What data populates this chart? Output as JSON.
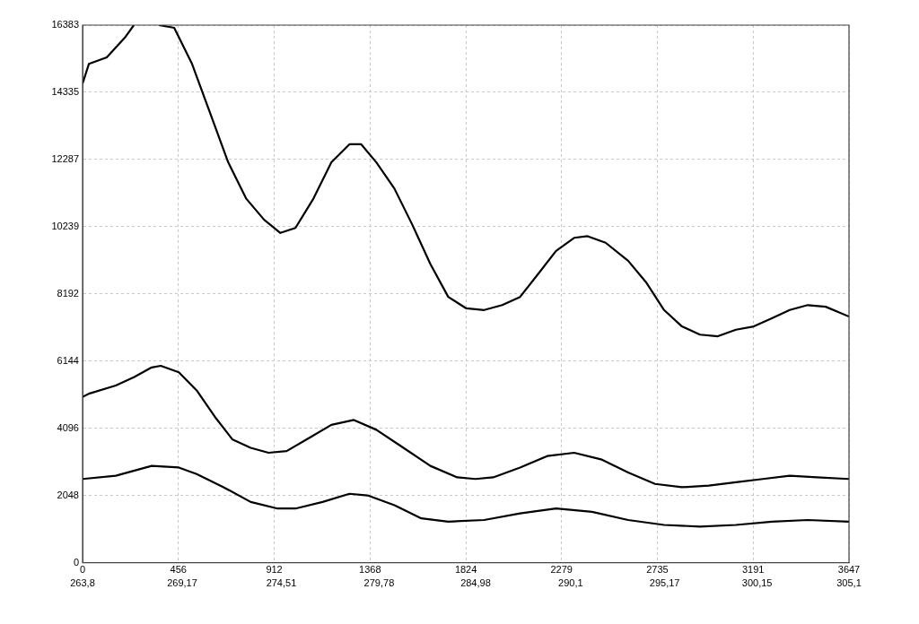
{
  "chart_data": {
    "type": "line",
    "xlim": [
      0,
      3647
    ],
    "xticks": [
      0,
      456,
      912,
      1368,
      1824,
      2279,
      2735,
      3191,
      3647
    ],
    "x2lim": [
      263.8,
      305.1
    ],
    "x2ticks": [
      {
        "value": 263.8,
        "label": "263,8"
      },
      {
        "value": 269.17,
        "label": "269,17"
      },
      {
        "value": 274.51,
        "label": "274,51"
      },
      {
        "value": 279.78,
        "label": "279,78"
      },
      {
        "value": 284.98,
        "label": "284,98"
      },
      {
        "value": 290.1,
        "label": "290,1"
      },
      {
        "value": 295.17,
        "label": "295,17"
      },
      {
        "value": 300.15,
        "label": "300,15"
      },
      {
        "value": 305.1,
        "label": "305,1"
      }
    ],
    "ylim": [
      0,
      16383
    ],
    "yticks": [
      0,
      2048,
      4096,
      6144,
      8192,
      10239,
      12287,
      14335,
      16383
    ],
    "grid": true,
    "legend": false,
    "marker": "none",
    "line_style": "solid",
    "series": [
      {
        "color": "#000000",
        "x": [
          0,
          30,
          115,
          201,
          244,
          300,
          363,
          436,
          521,
          607,
          693,
          778,
          864,
          941,
          1013,
          1099,
          1184,
          1270,
          1326,
          1398,
          1484,
          1569,
          1655,
          1740,
          1826,
          1911,
          1997,
          2082,
          2168,
          2253,
          2339,
          2403,
          2489,
          2596,
          2681,
          2767,
          2852,
          2938,
          3023,
          3109,
          3194,
          3280,
          3365,
          3451,
          3536,
          3647
        ],
        "values": [
          14600,
          15200,
          15400,
          16000,
          16383,
          null,
          16383,
          16300,
          15200,
          13700,
          12200,
          11100,
          10450,
          10050,
          10200,
          11100,
          12200,
          12750,
          12750,
          12200,
          11400,
          10300,
          9100,
          8100,
          7750,
          7700,
          7850,
          8100,
          8800,
          9500,
          9900,
          9950,
          9750,
          9200,
          8550,
          7700,
          7200,
          6950,
          6900,
          7100,
          7200,
          7450,
          7700,
          7850,
          7800,
          7500
        ]
      },
      {
        "color": "#000000",
        "x": [
          0,
          30,
          158,
          244,
          329,
          372,
          458,
          543,
          629,
          714,
          800,
          885,
          971,
          1078,
          1184,
          1291,
          1398,
          1527,
          1655,
          1783,
          1869,
          1954,
          2082,
          2211,
          2339,
          2467,
          2596,
          2724,
          2852,
          2980,
          3109,
          3237,
          3365,
          3494,
          3647
        ],
        "values": [
          5050,
          5150,
          5400,
          5650,
          5950,
          6000,
          5800,
          5250,
          4450,
          3750,
          3500,
          3350,
          3400,
          3800,
          4200,
          4350,
          4050,
          3500,
          2950,
          2600,
          2550,
          2600,
          2900,
          3250,
          3350,
          3150,
          2750,
          2400,
          2300,
          2350,
          2450,
          2550,
          2650,
          2600,
          2550
        ]
      },
      {
        "color": "#000000",
        "x": [
          0,
          158,
          329,
          458,
          543,
          671,
          800,
          928,
          1013,
          1142,
          1270,
          1356,
          1484,
          1612,
          1740,
          1911,
          2082,
          2253,
          2424,
          2596,
          2767,
          2938,
          3109,
          3280,
          3451,
          3647
        ],
        "values": [
          2550,
          2650,
          2950,
          2900,
          2700,
          2300,
          1850,
          1650,
          1650,
          1850,
          2100,
          2050,
          1750,
          1350,
          1250,
          1300,
          1500,
          1650,
          1550,
          1300,
          1150,
          1100,
          1150,
          1250,
          1300,
          1250
        ]
      }
    ]
  }
}
